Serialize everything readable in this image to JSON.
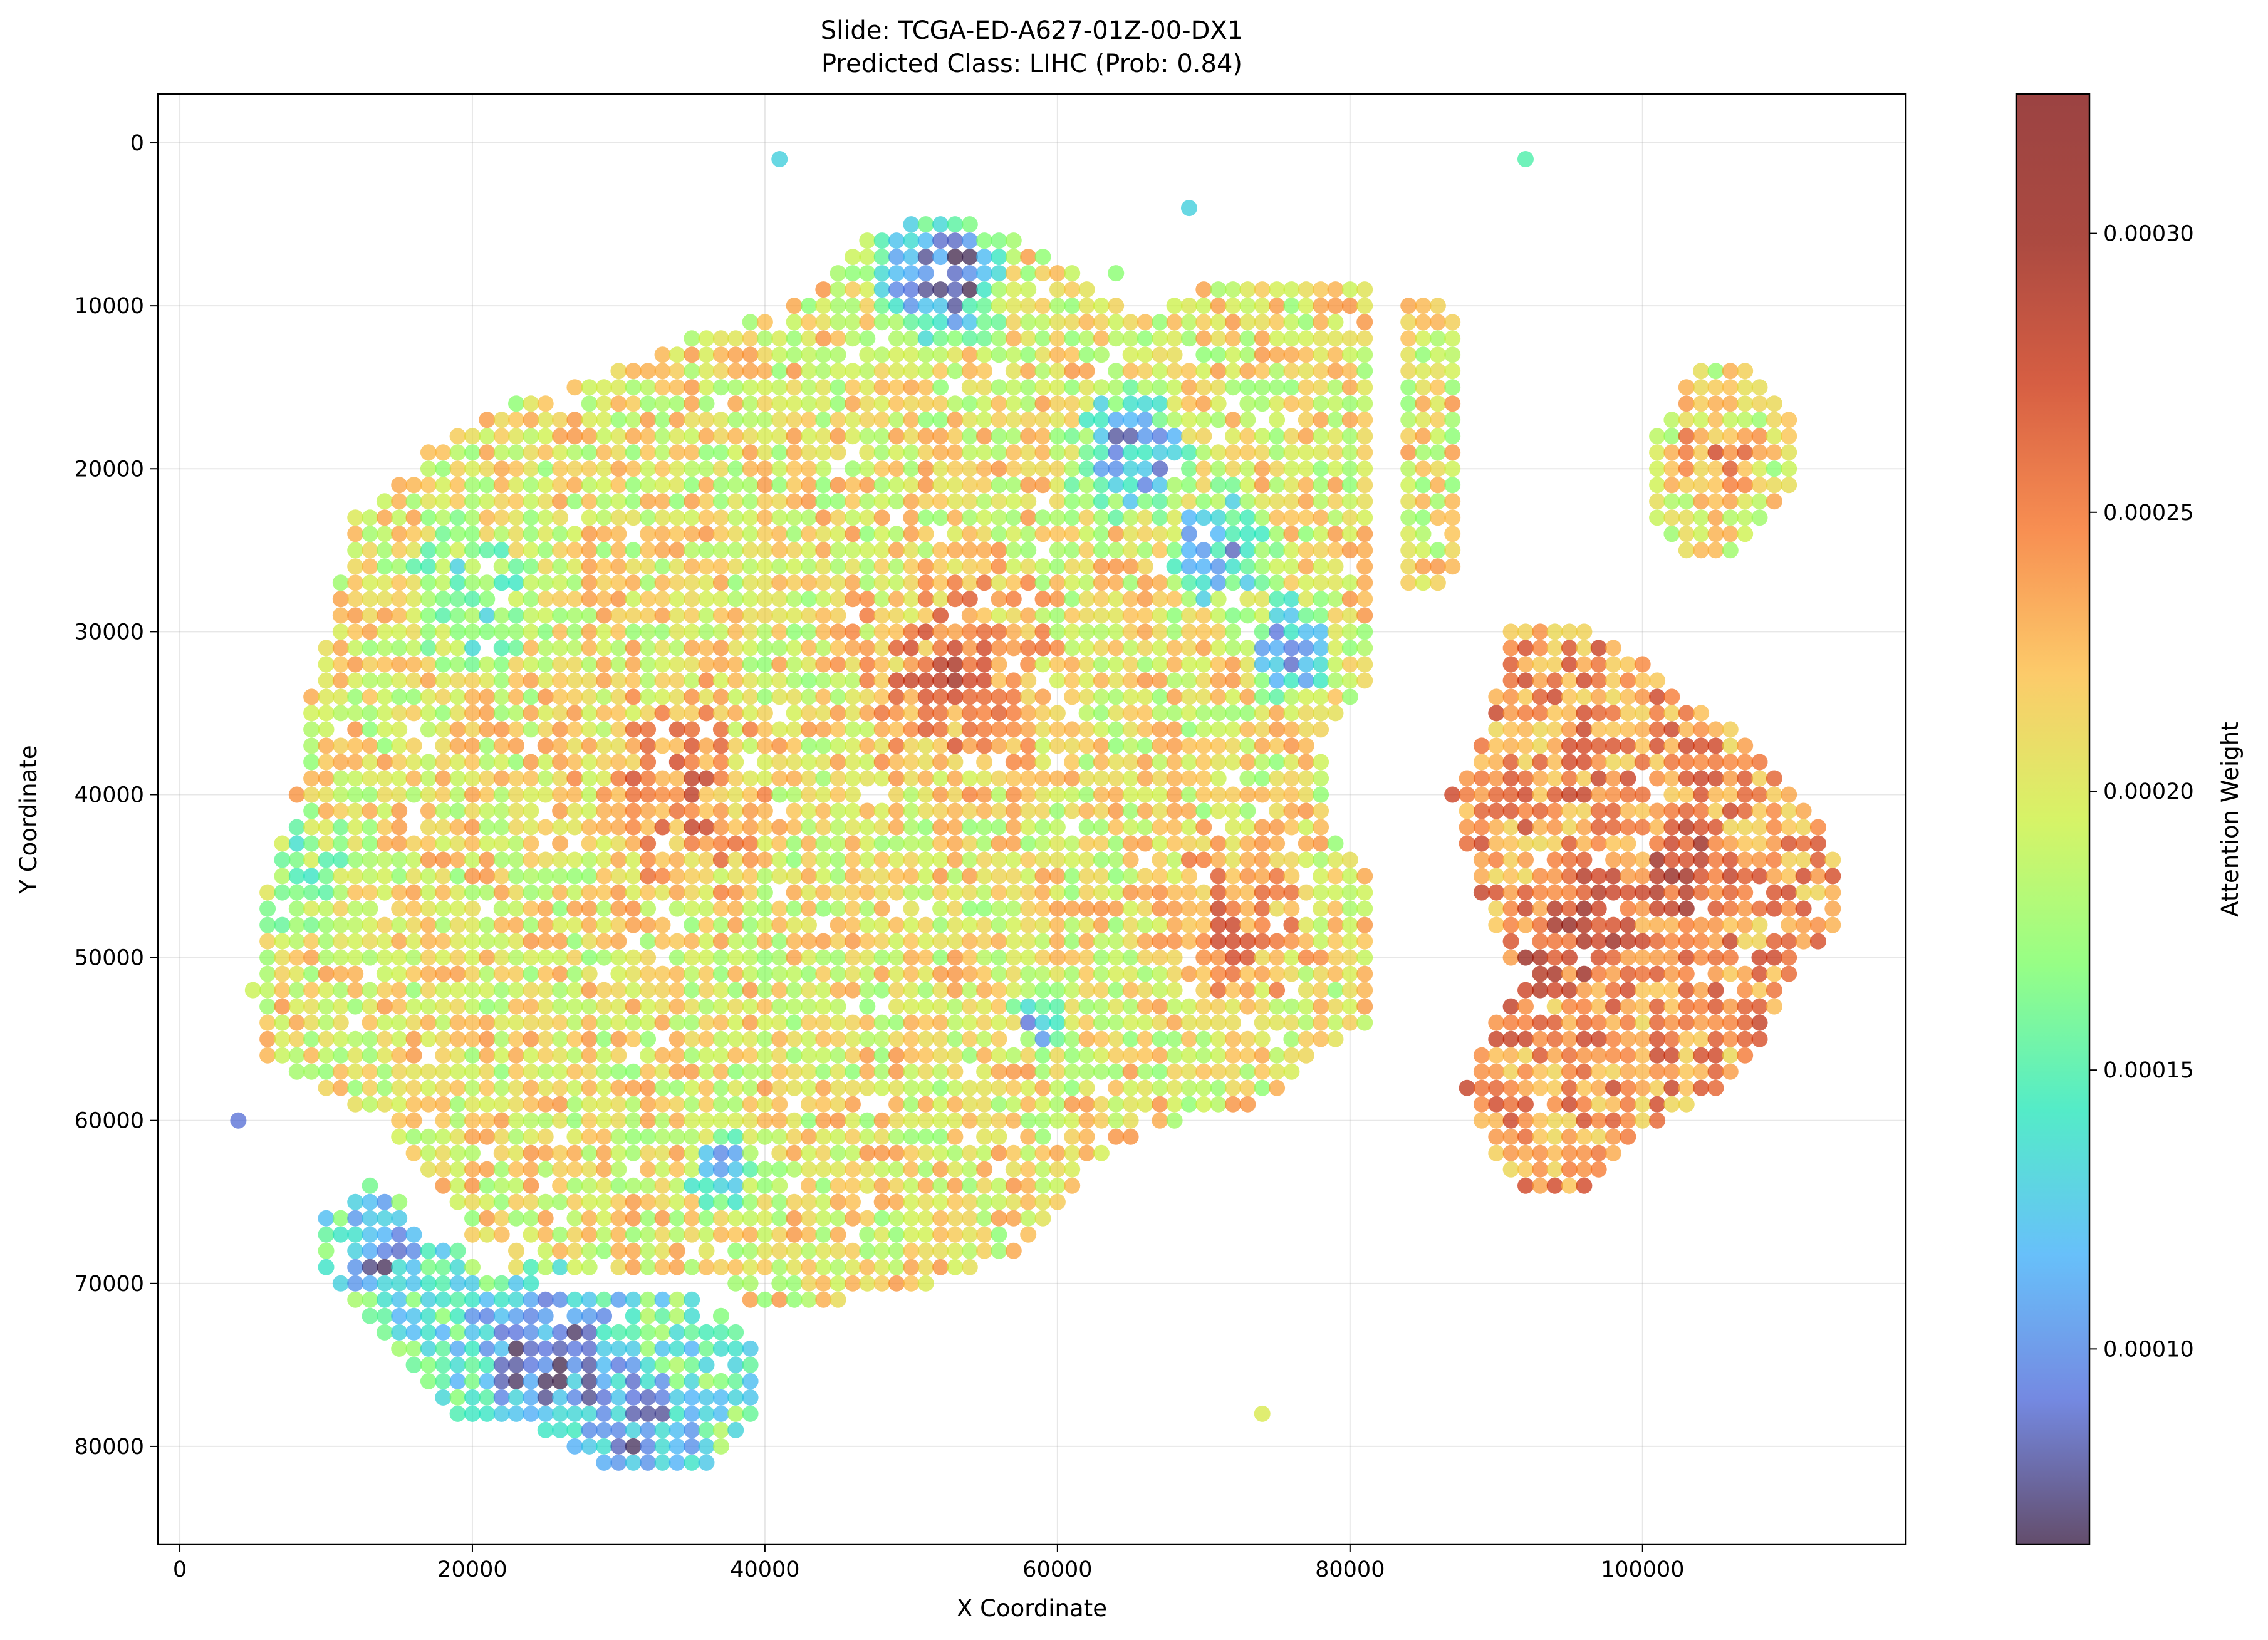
{
  "chart_data": {
    "type": "scatter",
    "title_line1": "Slide: TCGA-ED-A627-01Z-00-DX1",
    "title_line2": "Predicted Class: LIHC (Prob: 0.84)",
    "xlabel": "X Coordinate",
    "ylabel": "Y Coordinate",
    "colorbar_label": "Attention Weight",
    "xlim": [
      -1500,
      118000
    ],
    "ylim": [
      86000,
      -3000
    ],
    "y_inverted": true,
    "x_ticks": [
      0,
      20000,
      40000,
      60000,
      80000,
      100000
    ],
    "x_tick_labels": [
      "0",
      "20000",
      "40000",
      "60000",
      "80000",
      "100000"
    ],
    "y_ticks": [
      0,
      10000,
      20000,
      30000,
      40000,
      50000,
      60000,
      70000,
      80000
    ],
    "y_tick_labels": [
      "0",
      "10000",
      "20000",
      "30000",
      "40000",
      "50000",
      "60000",
      "70000",
      "80000"
    ],
    "colorbar_range": [
      6.5e-05,
      0.000325
    ],
    "colorbar_ticks": [
      0.0001,
      0.00015,
      0.0002,
      0.00025,
      0.0003
    ],
    "colorbar_tick_labels": [
      "0.00010",
      "0.00015",
      "0.00020",
      "0.00025",
      "0.00030"
    ],
    "colormap": "turbo",
    "grid": true,
    "marker_alpha": 0.7,
    "grid_spacing": 1000,
    "regions": {
      "main_tissue_polygon": [
        [
          9000,
          34000
        ],
        [
          12000,
          23000
        ],
        [
          17000,
          19000
        ],
        [
          23000,
          16000
        ],
        [
          30000,
          14000
        ],
        [
          35000,
          12000
        ],
        [
          42000,
          10000
        ],
        [
          47000,
          6000
        ],
        [
          52000,
          4000
        ],
        [
          58000,
          6000
        ],
        [
          66000,
          11000
        ],
        [
          70000,
          9000
        ],
        [
          76000,
          9000
        ],
        [
          82000,
          9000
        ],
        [
          82000,
          20000
        ],
        [
          81000,
          34000
        ],
        [
          78000,
          37000
        ],
        [
          79000,
          42000
        ],
        [
          82000,
          46000
        ],
        [
          82000,
          54000
        ],
        [
          78000,
          56000
        ],
        [
          74000,
          59000
        ],
        [
          66000,
          61000
        ],
        [
          62000,
          63000
        ],
        [
          58000,
          68000
        ],
        [
          52000,
          70000
        ],
        [
          46000,
          71000
        ],
        [
          40000,
          72000
        ],
        [
          36000,
          69000
        ],
        [
          33000,
          70000
        ],
        [
          30000,
          70000
        ],
        [
          24000,
          70000
        ],
        [
          20000,
          67000
        ],
        [
          17000,
          63000
        ],
        [
          14000,
          60000
        ],
        [
          10000,
          58000
        ],
        [
          6000,
          56000
        ],
        [
          5000,
          52000
        ],
        [
          6000,
          46000
        ],
        [
          8000,
          40000
        ]
      ],
      "side_strip_polygon": [
        [
          84000,
          10000
        ],
        [
          87000,
          10000
        ],
        [
          88000,
          20000
        ],
        [
          88000,
          27000
        ],
        [
          86000,
          28000
        ],
        [
          84000,
          28000
        ]
      ],
      "lower_left_polygon": [
        [
          10000,
          66000
        ],
        [
          14000,
          63000
        ],
        [
          17000,
          67000
        ],
        [
          22000,
          69000
        ],
        [
          28000,
          71000
        ],
        [
          33000,
          70000
        ],
        [
          38000,
          72000
        ],
        [
          40000,
          74000
        ],
        [
          39000,
          79000
        ],
        [
          35000,
          82000
        ],
        [
          30000,
          82000
        ],
        [
          25000,
          79000
        ],
        [
          19000,
          78000
        ],
        [
          14000,
          73000
        ],
        [
          10000,
          69000
        ]
      ],
      "right_tissue_polygon": [
        [
          91000,
          30000
        ],
        [
          95000,
          29000
        ],
        [
          99000,
          31000
        ],
        [
          103000,
          34000
        ],
        [
          107000,
          36000
        ],
        [
          111000,
          40000
        ],
        [
          114000,
          45000
        ],
        [
          114000,
          48000
        ],
        [
          111000,
          50000
        ],
        [
          109000,
          54000
        ],
        [
          106000,
          58000
        ],
        [
          100000,
          61000
        ],
        [
          97000,
          64000
        ],
        [
          93000,
          65000
        ],
        [
          90000,
          62000
        ],
        [
          88000,
          58000
        ],
        [
          90000,
          54000
        ],
        [
          91000,
          50000
        ],
        [
          89000,
          46000
        ],
        [
          87000,
          40000
        ],
        [
          89000,
          37000
        ]
      ],
      "top_right_blob_polygon": [
        [
          104000,
          13000
        ],
        [
          108000,
          14000
        ],
        [
          111000,
          18000
        ],
        [
          110000,
          22000
        ],
        [
          107000,
          25000
        ],
        [
          104000,
          26000
        ],
        [
          101000,
          23000
        ],
        [
          101000,
          18000
        ]
      ],
      "low_attention_zones": [
        {
          "center": [
            52000,
            8000
          ],
          "radius": 5500,
          "value": 9e-05
        },
        {
          "center": [
            65000,
            19000
          ],
          "radius": 5000,
          "value": 0.00011
        },
        {
          "center": [
            71000,
            25000
          ],
          "radius": 4500,
          "value": 0.000115
        },
        {
          "center": [
            76000,
            31000
          ],
          "radius": 4000,
          "value": 0.00011
        },
        {
          "center": [
            25000,
            74000
          ],
          "radius": 6500,
          "value": 9.5e-05
        },
        {
          "center": [
            31000,
            79000
          ],
          "radius": 5000,
          "value": 0.0001
        },
        {
          "center": [
            14000,
            68000
          ],
          "radius": 3500,
          "value": 0.0001
        },
        {
          "center": [
            59000,
            54000
          ],
          "radius": 2500,
          "value": 0.00012
        },
        {
          "center": [
            37000,
            63000
          ],
          "radius": 3000,
          "value": 0.00013
        },
        {
          "center": [
            20000,
            28000
          ],
          "radius": 6000,
          "value": 0.000155
        },
        {
          "center": [
            8000,
            45000
          ],
          "radius": 5000,
          "value": 0.00017
        }
      ],
      "high_attention_zones": [
        {
          "center": [
            96000,
            48000
          ],
          "radius": 5000,
          "value": 0.0003
        },
        {
          "center": [
            103000,
            45000
          ],
          "radius": 4000,
          "value": 0.0003
        },
        {
          "center": [
            34000,
            40000
          ],
          "radius": 8000,
          "value": 0.000265
        },
        {
          "center": [
            53000,
            33000
          ],
          "radius": 9000,
          "value": 0.000265
        },
        {
          "center": [
            72000,
            48000
          ],
          "radius": 7000,
          "value": 0.000265
        },
        {
          "center": [
            105000,
            19000
          ],
          "radius": 3500,
          "value": 0.00026
        },
        {
          "center": [
            92000,
            51000
          ],
          "radius": 3000,
          "value": 0.00029
        }
      ],
      "outlier_points": [
        {
          "x": 4000,
          "y": 60000,
          "value": 9e-05
        },
        {
          "x": 41000,
          "y": 1000,
          "value": 0.00013
        },
        {
          "x": 92000,
          "y": 1000,
          "value": 0.00015
        },
        {
          "x": 74000,
          "y": 78000,
          "value": 0.0002
        },
        {
          "x": 69000,
          "y": 4000,
          "value": 0.00013
        },
        {
          "x": 64000,
          "y": 8000,
          "value": 0.00017
        }
      ]
    }
  }
}
